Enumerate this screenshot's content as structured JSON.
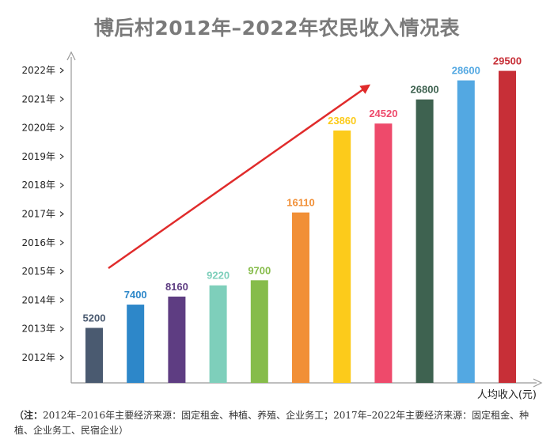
{
  "chart_data": {
    "type": "bar",
    "title": "博后村2012年–2022年农民收入情况表",
    "categories": [
      "2012年",
      "2013年",
      "2014年",
      "2015年",
      "2016年",
      "2017年",
      "2018年",
      "2019年",
      "2020年",
      "2021年",
      "2022年"
    ],
    "values": [
      5200,
      7400,
      8160,
      9220,
      9700,
      16110,
      23860,
      24520,
      26800,
      28600,
      29500
    ],
    "xlabel": "人均收入(元)",
    "ylabel": "",
    "colors": [
      "#4a5a70",
      "#2d87c9",
      "#5e3d82",
      "#7ecfbb",
      "#86bc4a",
      "#f18f36",
      "#fccb1b",
      "#ee4a6b",
      "#3e6250",
      "#53a8e2",
      "#c72f37"
    ],
    "arrow_color": "#e02b2b",
    "grid": false
  },
  "note": {
    "lead": "（注：",
    "text": "2012年–2016年主要经济来源：固定租金、种植、养殖、企业务工；2017年–2022年主要经济来源：固定租金、种植、企业务工、民宿企业）"
  }
}
